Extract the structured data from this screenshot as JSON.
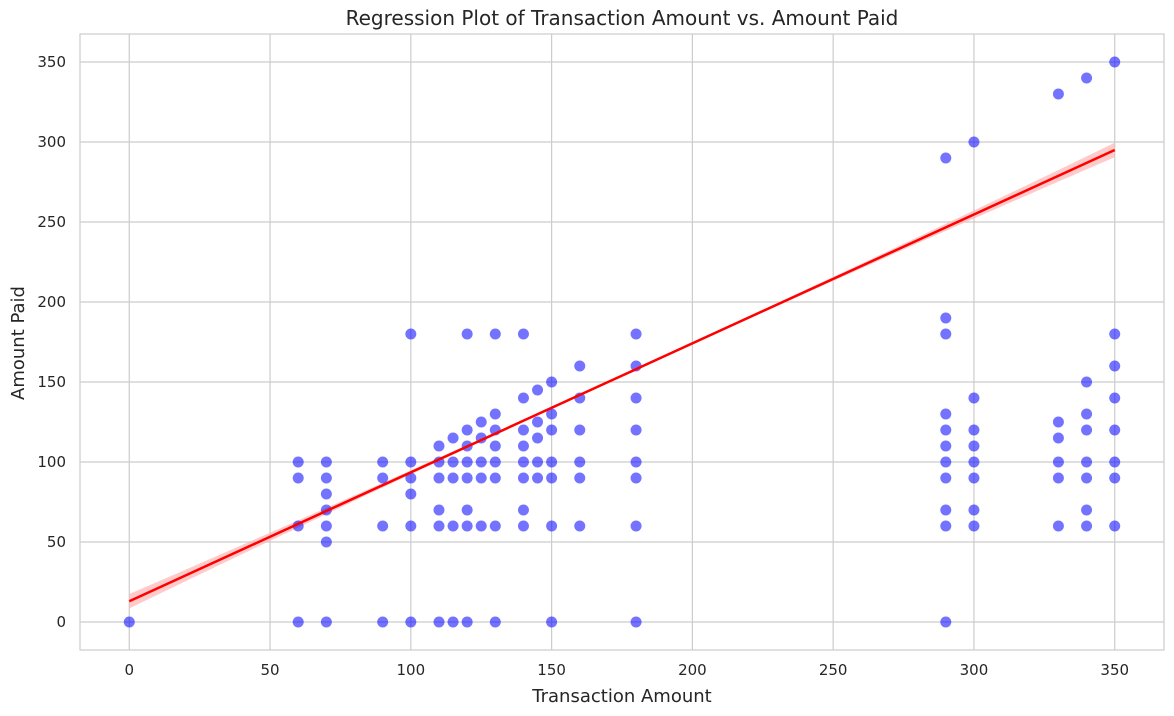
{
  "chart_data": {
    "type": "scatter",
    "title": "Regression Plot of Transaction Amount vs. Amount Paid",
    "xlabel": "Transaction Amount",
    "ylabel": "Amount Paid",
    "xlim": [
      -17.5,
      367.5
    ],
    "ylim": [
      -17.5,
      367.5
    ],
    "xticks": [
      0,
      50,
      100,
      150,
      200,
      250,
      300,
      350
    ],
    "yticks": [
      0,
      50,
      100,
      150,
      200,
      250,
      300,
      350
    ],
    "grid": true,
    "colors": {
      "points": "#0000ff",
      "regression": "#ff0000",
      "ci_band": "#ffb3b3"
    },
    "series": [
      {
        "kind": "points",
        "points": [
          [
            0,
            0
          ],
          [
            60,
            0
          ],
          [
            60,
            60
          ],
          [
            60,
            90
          ],
          [
            60,
            100
          ],
          [
            70,
            0
          ],
          [
            70,
            50
          ],
          [
            70,
            60
          ],
          [
            70,
            70
          ],
          [
            70,
            80
          ],
          [
            70,
            90
          ],
          [
            70,
            100
          ],
          [
            90,
            0
          ],
          [
            90,
            60
          ],
          [
            90,
            90
          ],
          [
            90,
            100
          ],
          [
            100,
            0
          ],
          [
            100,
            60
          ],
          [
            100,
            80
          ],
          [
            100,
            90
          ],
          [
            100,
            100
          ],
          [
            100,
            180
          ],
          [
            110,
            0
          ],
          [
            110,
            60
          ],
          [
            110,
            70
          ],
          [
            110,
            90
          ],
          [
            110,
            100
          ],
          [
            110,
            110
          ],
          [
            115,
            0
          ],
          [
            115,
            60
          ],
          [
            115,
            90
          ],
          [
            115,
            100
          ],
          [
            115,
            115
          ],
          [
            120,
            0
          ],
          [
            120,
            60
          ],
          [
            120,
            70
          ],
          [
            120,
            90
          ],
          [
            120,
            100
          ],
          [
            120,
            110
          ],
          [
            120,
            120
          ],
          [
            120,
            180
          ],
          [
            125,
            60
          ],
          [
            125,
            90
          ],
          [
            125,
            100
          ],
          [
            125,
            115
          ],
          [
            125,
            125
          ],
          [
            130,
            0
          ],
          [
            130,
            60
          ],
          [
            130,
            90
          ],
          [
            130,
            100
          ],
          [
            130,
            110
          ],
          [
            130,
            120
          ],
          [
            130,
            130
          ],
          [
            130,
            180
          ],
          [
            140,
            60
          ],
          [
            140,
            70
          ],
          [
            140,
            90
          ],
          [
            140,
            100
          ],
          [
            140,
            110
          ],
          [
            140,
            120
          ],
          [
            140,
            140
          ],
          [
            140,
            180
          ],
          [
            145,
            90
          ],
          [
            145,
            100
          ],
          [
            145,
            115
          ],
          [
            145,
            125
          ],
          [
            145,
            145
          ],
          [
            150,
            0
          ],
          [
            150,
            60
          ],
          [
            150,
            90
          ],
          [
            150,
            100
          ],
          [
            150,
            120
          ],
          [
            150,
            130
          ],
          [
            150,
            150
          ],
          [
            160,
            60
          ],
          [
            160,
            90
          ],
          [
            160,
            100
          ],
          [
            160,
            120
          ],
          [
            160,
            140
          ],
          [
            160,
            160
          ],
          [
            180,
            0
          ],
          [
            180,
            60
          ],
          [
            180,
            90
          ],
          [
            180,
            100
          ],
          [
            180,
            120
          ],
          [
            180,
            140
          ],
          [
            180,
            160
          ],
          [
            180,
            180
          ],
          [
            290,
            0
          ],
          [
            290,
            60
          ],
          [
            290,
            70
          ],
          [
            290,
            90
          ],
          [
            290,
            100
          ],
          [
            290,
            110
          ],
          [
            290,
            120
          ],
          [
            290,
            130
          ],
          [
            290,
            180
          ],
          [
            290,
            190
          ],
          [
            290,
            290
          ],
          [
            300,
            60
          ],
          [
            300,
            70
          ],
          [
            300,
            90
          ],
          [
            300,
            100
          ],
          [
            300,
            110
          ],
          [
            300,
            120
          ],
          [
            300,
            140
          ],
          [
            300,
            300
          ],
          [
            330,
            60
          ],
          [
            330,
            90
          ],
          [
            330,
            100
          ],
          [
            330,
            115
          ],
          [
            330,
            125
          ],
          [
            330,
            330
          ],
          [
            340,
            60
          ],
          [
            340,
            70
          ],
          [
            340,
            90
          ],
          [
            340,
            100
          ],
          [
            340,
            120
          ],
          [
            340,
            130
          ],
          [
            340,
            150
          ],
          [
            340,
            340
          ],
          [
            350,
            60
          ],
          [
            350,
            90
          ],
          [
            350,
            100
          ],
          [
            350,
            120
          ],
          [
            350,
            140
          ],
          [
            350,
            160
          ],
          [
            350,
            180
          ],
          [
            350,
            350
          ]
        ]
      },
      {
        "kind": "regression",
        "line": [
          [
            0,
            13
          ],
          [
            350,
            295
          ]
        ],
        "ci_halfwidth_at_max": 4
      }
    ]
  }
}
